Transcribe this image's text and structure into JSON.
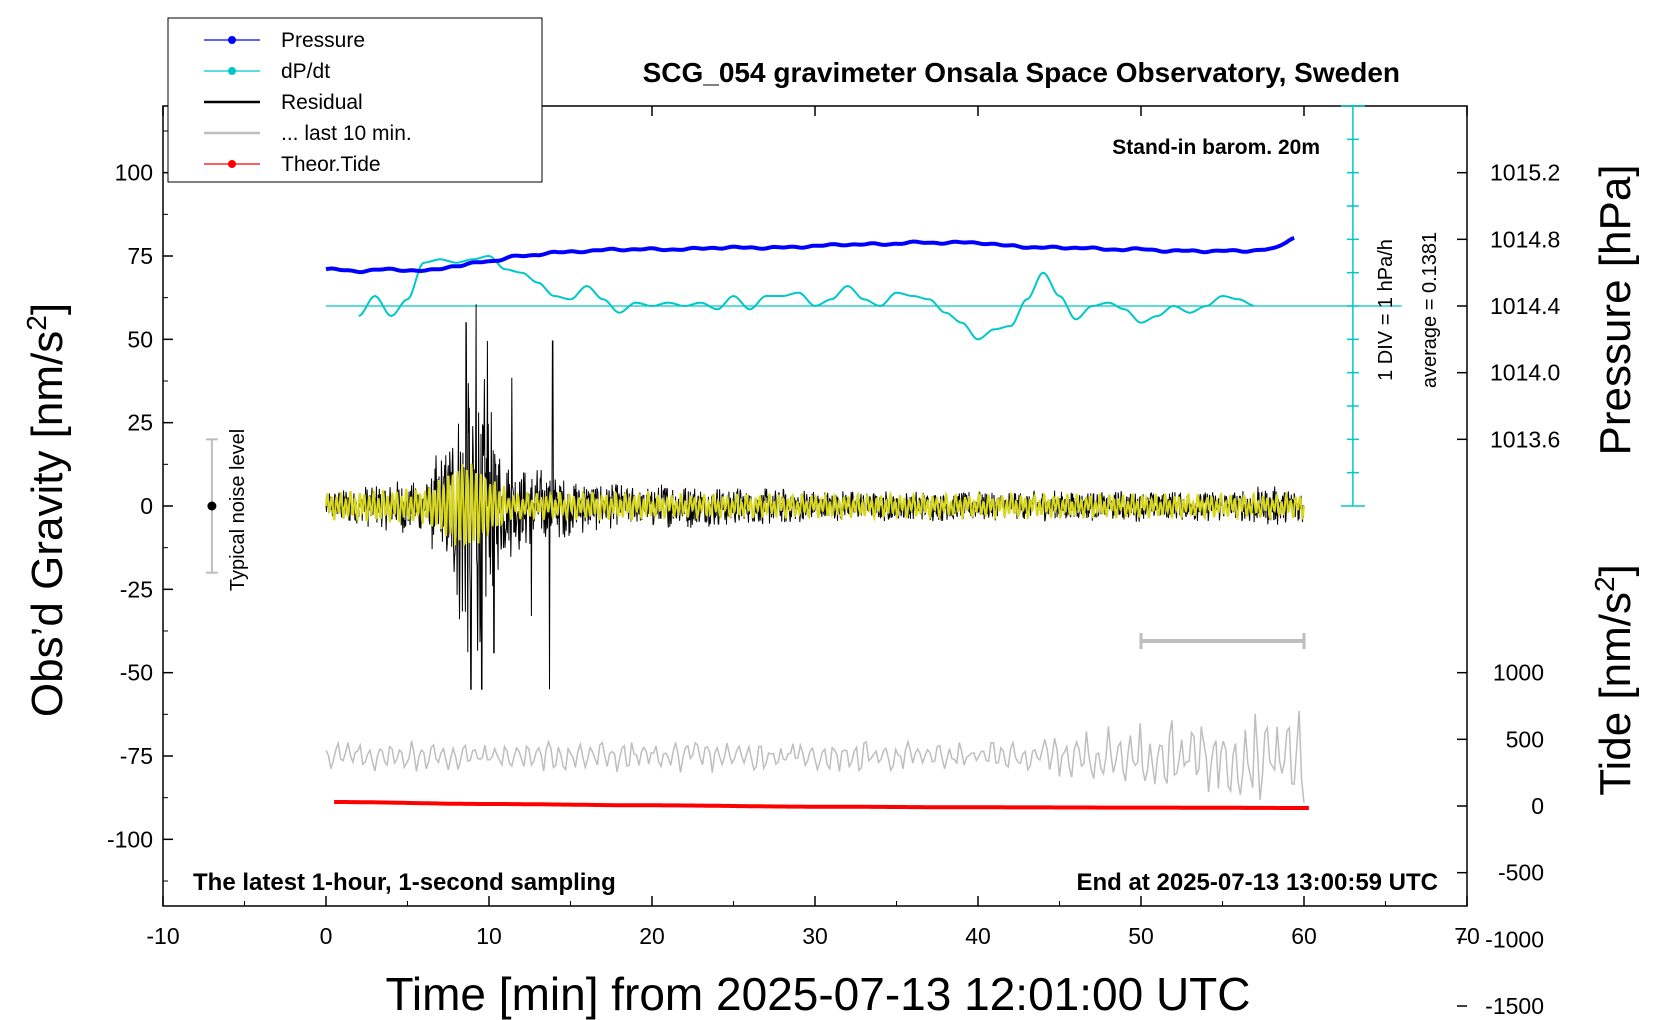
{
  "chart_data": {
    "type": "line",
    "title": "SCG_054 gravimeter Onsala Space Observatory, Sweden",
    "xlabel": "Time [min] from 2025-07-13 12:01:00 UTC",
    "ylabel_left_main": "Obs’d Gravity [nm/s",
    "ylabel_left_sup": "2",
    "ylabel_left_end": "]",
    "ylabel_right_top": "Pressure [hPa]",
    "ylabel_right_bottom_main": "Tide [nm/s",
    "ylabel_right_bottom_sup": "2",
    "ylabel_right_bottom_end": "]",
    "xlim": [
      -10,
      70
    ],
    "ylim": [
      -120,
      120
    ],
    "x_ticks": [
      "-10",
      "0",
      "10",
      "20",
      "30",
      "40",
      "50",
      "60",
      "70"
    ],
    "y_ticks_left": [
      "100",
      "75",
      "50",
      "25",
      "0",
      "-25",
      "-50",
      "-75",
      "-100"
    ],
    "pressure_ticks": [
      "1015.2",
      "1014.8",
      "1014.4",
      "1014.0",
      "1013.6"
    ],
    "tide_ticks": [
      "1000",
      "500",
      "0",
      "-500",
      "-1000",
      "-1500"
    ],
    "legend": [
      {
        "label": "Pressure",
        "color": "#0000ff",
        "marker": true
      },
      {
        "label": "dP/dt",
        "color": "#00c8c8",
        "marker": true
      },
      {
        "label": "Residual",
        "color": "#000000",
        "marker": false
      },
      {
        "label": "... last 10 min.",
        "color": "#bebebe",
        "marker": false
      },
      {
        "label": "Theor.Tide",
        "color": "#ff0000",
        "marker": true
      }
    ],
    "annotations": {
      "barometer": "Stand-in barom. 20m",
      "div_scale": "1 DIV = 1 hPa/h",
      "average": "average = 0.1381",
      "noise": "Typical noise level",
      "latest": "The latest 1-hour, 1-second sampling",
      "end": "End at 2025-07-13 13:00:59 UTC"
    },
    "series": [
      {
        "name": "Pressure",
        "color": "#0000ff",
        "unit": "hPa",
        "x": [
          0,
          2,
          4,
          6,
          8,
          10,
          12,
          14,
          16,
          18,
          20,
          22,
          24,
          26,
          28,
          30,
          32,
          34,
          36,
          38,
          40,
          42,
          44,
          46,
          48,
          50,
          52,
          54,
          56,
          58,
          59.5
        ],
        "y": [
          1014.62,
          1014.61,
          1014.62,
          1014.61,
          1014.64,
          1014.67,
          1014.7,
          1014.72,
          1014.73,
          1014.74,
          1014.74,
          1014.74,
          1014.75,
          1014.75,
          1014.75,
          1014.76,
          1014.77,
          1014.77,
          1014.78,
          1014.78,
          1014.78,
          1014.76,
          1014.75,
          1014.75,
          1014.74,
          1014.74,
          1014.73,
          1014.73,
          1014.73,
          1014.74,
          1014.81
        ]
      },
      {
        "name": "dP/dt",
        "color": "#00c8c8",
        "baseline": 60,
        "x": [
          2,
          3,
          4,
          5,
          6,
          7,
          8,
          9,
          10,
          11,
          12,
          13,
          14,
          15,
          16,
          17,
          18,
          19,
          20,
          21,
          22,
          23,
          24,
          25,
          26,
          27,
          28,
          29,
          30,
          31,
          32,
          33,
          34,
          35,
          36,
          37,
          38,
          39,
          40,
          41,
          42,
          43,
          44,
          45,
          46,
          47,
          48,
          49,
          50,
          51,
          52,
          53,
          54,
          55,
          56,
          57
        ],
        "y": [
          57,
          63,
          57,
          62,
          73,
          74,
          73,
          74,
          75,
          71,
          70,
          67,
          63,
          62,
          66,
          62,
          58,
          61,
          60,
          61,
          60,
          61,
          59,
          63,
          59,
          63,
          63,
          64,
          60,
          62,
          66,
          62,
          60,
          64,
          63,
          62,
          58,
          55,
          50,
          53,
          54,
          62,
          70,
          63,
          56,
          60,
          61,
          59,
          55,
          57,
          60,
          58,
          60,
          63,
          62,
          60
        ]
      },
      {
        "name": "Residual",
        "color": "#000000",
        "description_free": true
      },
      {
        "name": "... last 10 min.",
        "color": "#bebebe",
        "baseline": -75
      },
      {
        "name": "Theor.Tide",
        "color": "#ff0000",
        "unit": "nm/s2",
        "x": [
          0.5,
          10,
          20,
          30,
          40,
          50,
          60.5
        ],
        "y": [
          30,
          15,
          5,
          -5,
          -10,
          -12,
          -15
        ]
      }
    ],
    "noise_bar": {
      "x": -7,
      "ylim": [
        -20,
        20
      ]
    },
    "ten_min_bar": {
      "x": [
        50,
        60
      ]
    },
    "div_axis": {
      "x": 63,
      "ylim": [
        0,
        120
      ],
      "center": 60
    }
  }
}
